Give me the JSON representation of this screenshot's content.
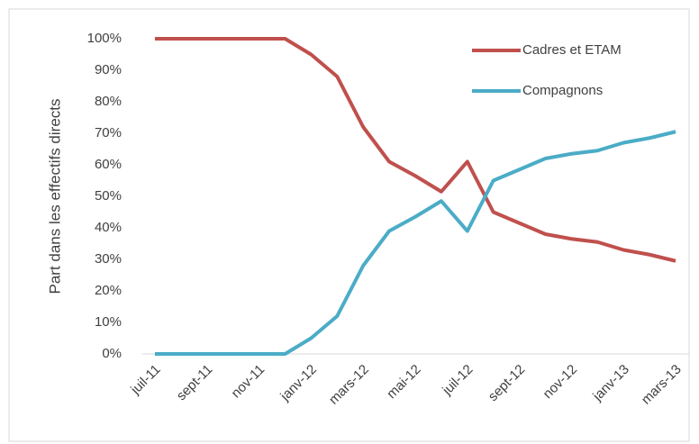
{
  "chart_data": {
    "type": "line",
    "categories": [
      "juil-11",
      null,
      "sept-11",
      null,
      "nov-11",
      null,
      "janv-12",
      null,
      "mars-12",
      null,
      "mai-12",
      null,
      "juil-12",
      null,
      "sept-12",
      null,
      "nov-12",
      null,
      "janv-13",
      null,
      "mars-13"
    ],
    "series": [
      {
        "name": "Cadres et ETAM",
        "color": "#c0504d",
        "values": [
          100,
          100,
          100,
          100,
          100,
          100,
          95,
          88,
          72,
          61,
          56.5,
          51.5,
          61,
          45,
          41.5,
          38,
          36.5,
          35.5,
          33,
          31.5,
          29.5
        ]
      },
      {
        "name": "Compagnons",
        "color": "#4bacc6",
        "values": [
          0,
          0,
          0,
          0,
          0,
          0,
          5,
          12,
          28,
          39,
          43.5,
          48.5,
          39,
          55,
          58.5,
          62,
          63.5,
          64.5,
          67,
          68.5,
          70.5
        ]
      }
    ],
    "y_label": "Part dans les effectifs directs",
    "ylim": [
      0,
      100
    ],
    "yticks": [
      {
        "value": 0,
        "label": "0%"
      },
      {
        "value": 10,
        "label": "10%"
      },
      {
        "value": 20,
        "label": "20%"
      },
      {
        "value": 30,
        "label": "30%"
      },
      {
        "value": 40,
        "label": "40%"
      },
      {
        "value": 50,
        "label": "50%"
      },
      {
        "value": 60,
        "label": "60%"
      },
      {
        "value": 70,
        "label": "70%"
      },
      {
        "value": 80,
        "label": "80%"
      },
      {
        "value": 90,
        "label": "90%"
      },
      {
        "value": 100,
        "label": "100%"
      }
    ],
    "grid": false,
    "legend": "upper right"
  }
}
